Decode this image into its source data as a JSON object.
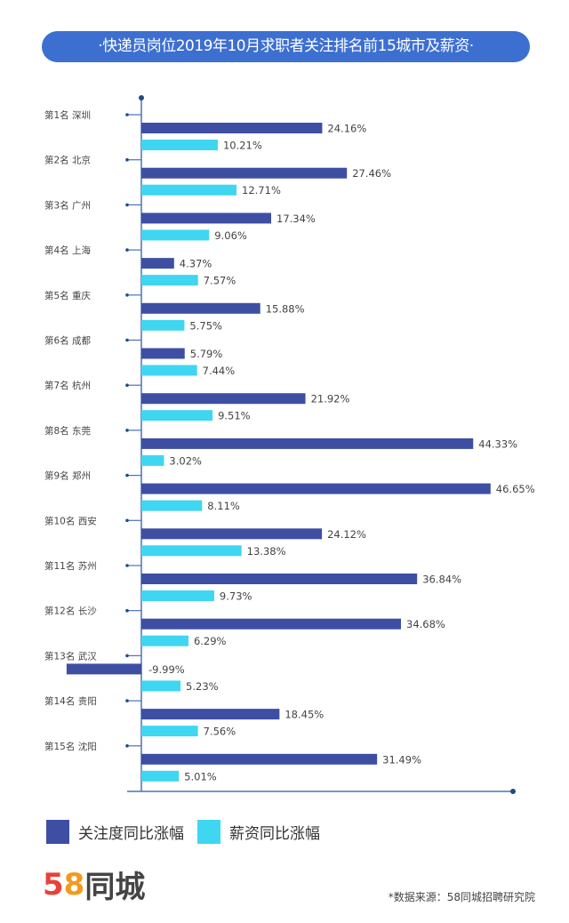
{
  "title": "·快递员岗位2019年10月求职者关注排名前15城市及薪资·",
  "colors": {
    "attention": "#3e4fa3",
    "salary": "#3fd6f2",
    "axis": "#4a72b8",
    "title_bg": "#3d6fd1"
  },
  "chart_data": {
    "type": "bar",
    "orientation": "horizontal",
    "categories": [
      "第1名 深圳",
      "第2名 北京",
      "第3名 广州",
      "第4名 上海",
      "第5名 重庆",
      "第6名 成都",
      "第7名 杭州",
      "第8名 东莞",
      "第9名 郑州",
      "第10名 西安",
      "第11名 苏州",
      "第12名 长沙",
      "第13名 武汉",
      "第14名 贵阳",
      "第15名 沈阳"
    ],
    "series": [
      {
        "name": "关注度同比涨幅",
        "values": [
          24.16,
          27.46,
          17.34,
          4.37,
          15.88,
          5.79,
          21.92,
          44.33,
          46.65,
          24.12,
          36.84,
          34.68,
          -9.99,
          18.45,
          31.49
        ],
        "labels": [
          "24.16%",
          "27.46%",
          "17.34%",
          "4.37%",
          "15.88%",
          "5.79%",
          "21.92%",
          "44.33%",
          "46.65%",
          "24.12%",
          "36.84%",
          "34.68%",
          "-9.99%",
          "18.45%",
          "31.49%"
        ]
      },
      {
        "name": "薪资同比涨幅",
        "values": [
          10.21,
          12.71,
          9.06,
          7.57,
          5.75,
          7.44,
          9.51,
          3.02,
          8.11,
          13.38,
          9.73,
          6.29,
          5.23,
          7.56,
          5.01
        ],
        "labels": [
          "10.21%",
          "12.71%",
          "9.06%",
          "7.57%",
          "5.75%",
          "7.44%",
          "9.51%",
          "3.02%",
          "8.11%",
          "13.38%",
          "9.73%",
          "6.29%",
          "5.23%",
          "7.56%",
          "5.01%"
        ]
      }
    ],
    "legend_position": "bottom-left",
    "grid": false
  },
  "legend": {
    "attention": "关注度同比涨幅",
    "salary": "薪资同比涨幅"
  },
  "logo": {
    "five": "5",
    "eight": "8",
    "text": "同城"
  },
  "source": "*数据来源：58同城招聘研究院"
}
